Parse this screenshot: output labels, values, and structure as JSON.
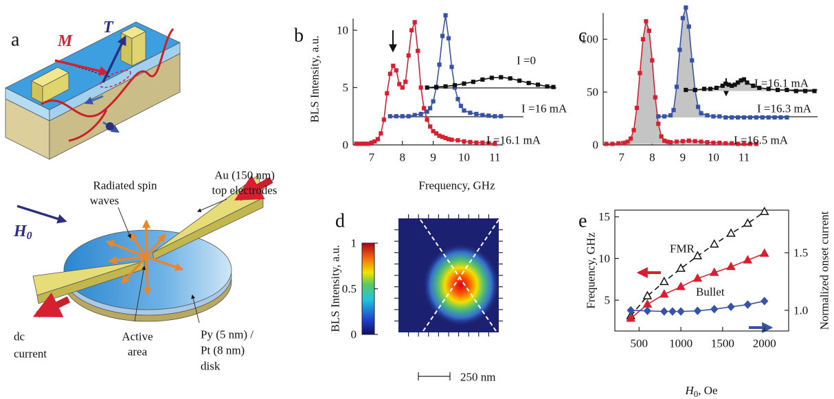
{
  "diagram": {
    "label": "a",
    "M": "M",
    "T": "T",
    "h0": {
      "main": "H",
      "sub": "0"
    },
    "electrodes": [
      "Au (150 nm)",
      "top electrodes"
    ],
    "spin_waves": [
      "Radiated spin",
      "waves"
    ],
    "dc_current": [
      "dc",
      "current"
    ],
    "active_area": [
      "Active",
      "area"
    ],
    "disk": [
      "Py (5 nm) /",
      "Pt (8 nm)",
      "disk"
    ]
  },
  "chart_data": [
    {
      "panel": "b",
      "type": "line",
      "ylabel": "BLS Intensity, a.u.",
      "xlabel": "Frequency, GHz",
      "xlim": [
        6.4,
        13
      ],
      "ylim": [
        0,
        11.5
      ],
      "xticks": [
        7,
        8,
        9,
        10,
        11
      ],
      "yticks": [
        0,
        5,
        10
      ],
      "series": [
        {
          "name": "I =16.1 mA",
          "color": "#d62031",
          "marker": "s",
          "x": [
            6.5,
            6.6,
            6.7,
            6.8,
            6.9,
            7.0,
            7.1,
            7.2,
            7.3,
            7.4,
            7.5,
            7.6,
            7.7,
            7.8,
            7.9,
            8.0,
            8.1,
            8.2,
            8.3,
            8.4,
            8.5,
            8.6,
            8.7,
            8.8,
            8.9,
            9.0,
            9.1,
            9.2,
            9.3,
            9.4,
            9.5,
            9.6,
            9.8,
            10.0,
            10.2,
            10.4,
            10.6,
            10.8,
            11.0
          ],
          "values": [
            0.1,
            0.1,
            0.1,
            0.1,
            0.1,
            0.2,
            0.3,
            0.5,
            1.0,
            2.2,
            4.5,
            6.2,
            6.9,
            6.5,
            5.3,
            5.0,
            5.5,
            7.8,
            10.0,
            10.7,
            8.2,
            5.0,
            3.2,
            2.2,
            1.6,
            1.2,
            1.0,
            0.8,
            0.7,
            0.6,
            0.5,
            0.45,
            0.4,
            0.3,
            0.25,
            0.2,
            0.2,
            0.15,
            0.1
          ]
        },
        {
          "name": "I =16 mA",
          "color": "#3653a8",
          "marker": "s",
          "x": [
            7.6,
            7.8,
            8.0,
            8.2,
            8.4,
            8.6,
            8.8,
            8.9,
            9.0,
            9.1,
            9.2,
            9.3,
            9.4,
            9.5,
            9.6,
            9.7,
            9.8,
            9.9,
            10.0,
            10.2,
            10.4,
            10.6,
            10.8,
            11.0,
            11.2
          ],
          "values": [
            2.5,
            2.5,
            2.5,
            2.5,
            2.6,
            2.7,
            2.9,
            3.2,
            3.8,
            5.0,
            7.0,
            9.5,
            11.3,
            9.3,
            6.8,
            5.0,
            4.0,
            3.4,
            3.0,
            2.8,
            2.7,
            2.6,
            2.55,
            2.5,
            2.5
          ]
        },
        {
          "name": "I =0",
          "color": "#111111",
          "marker": "s",
          "x": [
            8.8,
            9.1,
            9.4,
            9.7,
            10.0,
            10.3,
            10.6,
            10.9,
            11.2,
            11.5,
            11.8,
            12.1,
            12.4,
            12.7,
            12.9
          ],
          "values": [
            5.0,
            5.05,
            5.1,
            5.2,
            5.35,
            5.5,
            5.7,
            5.85,
            5.9,
            5.8,
            5.6,
            5.4,
            5.25,
            5.1,
            5.05
          ]
        }
      ]
    },
    {
      "panel": "c",
      "type": "line",
      "xlim": [
        6.4,
        13.4
      ],
      "ylim": [
        0,
        130
      ],
      "xticks": [
        7,
        8,
        9,
        10,
        11
      ],
      "yticks": [
        0,
        50,
        100
      ],
      "series": [
        {
          "name": "I =16.5 mA",
          "color": "#d62031",
          "marker": "s",
          "fill_color": "#c4c4c4",
          "x": [
            6.5,
            6.7,
            6.9,
            7.1,
            7.2,
            7.3,
            7.4,
            7.5,
            7.6,
            7.7,
            7.8,
            7.9,
            8.0,
            8.1,
            8.2,
            8.3,
            8.4,
            8.5,
            8.6,
            8.8,
            9.0,
            9.2,
            9.4,
            9.6,
            9.8,
            10.0,
            10.2,
            10.4,
            10.6,
            10.8,
            11.0,
            11.2,
            11.4
          ],
          "values": [
            1,
            1,
            1.5,
            2,
            3,
            6,
            14,
            35,
            68,
            100,
            117,
            108,
            80,
            45,
            20,
            8,
            4,
            3,
            2.5,
            3,
            3.5,
            4,
            3.5,
            3,
            2.5,
            2,
            2,
            1.5,
            1.5,
            1,
            1,
            1,
            1
          ]
        },
        {
          "name": "I =16.3 mA",
          "color": "#3653a8",
          "marker": "s",
          "fill_color": "#c4c4c4",
          "x": [
            8.2,
            8.4,
            8.6,
            8.7,
            8.8,
            8.9,
            9.0,
            9.1,
            9.2,
            9.3,
            9.4,
            9.5,
            9.6,
            9.8,
            10.0,
            10.2,
            10.4,
            10.6,
            10.8,
            11.0,
            11.2,
            11.4,
            11.6,
            11.8,
            12.0,
            12.2,
            12.4
          ],
          "values": [
            27,
            27,
            28,
            33,
            55,
            90,
            120,
            130,
            112,
            80,
            52,
            36,
            30,
            28,
            27,
            27,
            26,
            26,
            26,
            26,
            26,
            26,
            26,
            26,
            26,
            26,
            26
          ]
        },
        {
          "name": "I =16.1 mA",
          "color": "#111111",
          "marker": "s",
          "fill_color": "#c4c4c4",
          "x": [
            9.1,
            9.4,
            9.7,
            9.9,
            10.1,
            10.3,
            10.4,
            10.5,
            10.6,
            10.7,
            10.8,
            10.9,
            11.0,
            11.1,
            11.3,
            11.5,
            11.8,
            12.1,
            12.4,
            12.7,
            13.0,
            13.3
          ],
          "values": [
            52,
            52,
            53,
            53,
            54,
            56,
            58,
            57,
            56,
            57,
            59,
            61,
            62,
            59,
            56,
            54,
            53,
            52,
            52,
            51,
            51,
            51
          ]
        }
      ]
    },
    {
      "panel": "d",
      "type": "heatmap",
      "colorbar_label": "BLS Intensity, a.u.",
      "zlim": [
        0,
        1
      ],
      "zticks": [
        0,
        0.5,
        1
      ],
      "scale_bar": "250 nm"
    },
    {
      "panel": "e",
      "type": "line",
      "ylabel": "Frequency, GHz",
      "y2label": "Normalized onset current",
      "xlabel": {
        "main": "H",
        "sub": "0",
        "rest": ", Oe"
      },
      "xlim": [
        210,
        2290
      ],
      "ylim": [
        1.3,
        15.8
      ],
      "y2lim": [
        0.82,
        1.87
      ],
      "xticks": [
        500,
        1000,
        1500,
        2000
      ],
      "yticks": [
        5,
        10,
        15
      ],
      "y2ticks": [
        {
          "value": 1,
          "label": "1.0"
        },
        1.5
      ],
      "series": [
        {
          "name": "FMR",
          "color": "#111111",
          "marker": "^",
          "markerfacecolor": "#ffffff",
          "linestyle": "dashed",
          "x": [
            400,
            600,
            800,
            1000,
            1200,
            1400,
            1600,
            1800,
            2000
          ],
          "values": [
            3.1,
            5.5,
            7.2,
            8.8,
            10.3,
            11.7,
            13.0,
            14.2,
            15.6
          ]
        },
        {
          "name": "Bullet",
          "color": "#d62031",
          "marker": "^",
          "x": [
            400,
            600,
            800,
            1000,
            1200,
            1400,
            1600,
            1800,
            2000
          ],
          "values": [
            2.8,
            4.5,
            5.7,
            6.6,
            7.6,
            8.3,
            9.0,
            9.8,
            10.6
          ]
        },
        {
          "color": "#3653a8",
          "marker": "D",
          "axis": "y2",
          "x": [
            400,
            600,
            800,
            900,
            1000,
            1200,
            1400,
            1600,
            1800,
            2000
          ],
          "values": [
            1.0,
            0.995,
            0.99,
            0.99,
            0.99,
            0.995,
            1.01,
            1.03,
            1.05,
            1.08
          ]
        }
      ]
    }
  ]
}
